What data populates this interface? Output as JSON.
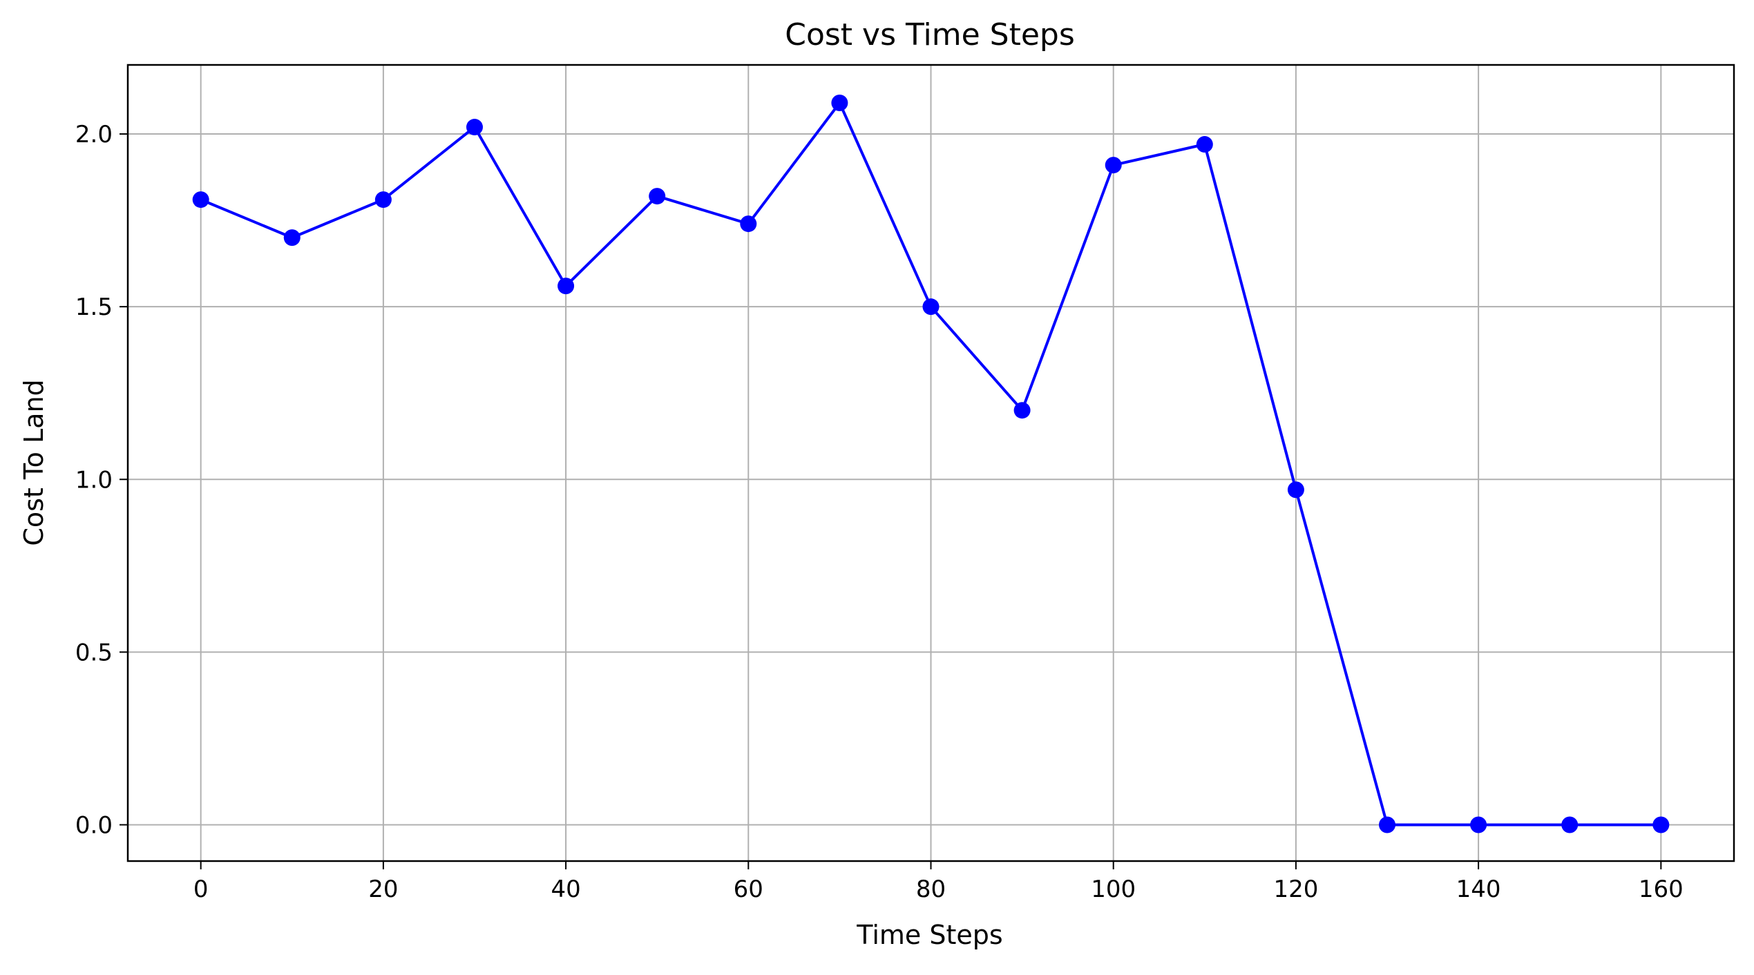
{
  "chart_data": {
    "type": "line",
    "title": "Cost vs Time Steps",
    "xlabel": "Time Steps",
    "ylabel": "Cost To Land",
    "xlim": [
      -8,
      168
    ],
    "ylim": [
      -0.105,
      2.2
    ],
    "x_ticks": [
      0,
      20,
      40,
      60,
      80,
      100,
      120,
      140,
      160
    ],
    "x_tick_labels": [
      "0",
      "20",
      "40",
      "60",
      "80",
      "100",
      "120",
      "140",
      "160"
    ],
    "y_ticks": [
      0.0,
      0.5,
      1.0,
      1.5,
      2.0
    ],
    "y_tick_labels": [
      "0.0",
      "0.5",
      "1.0",
      "1.5",
      "2.0"
    ],
    "grid": true,
    "legend": "none",
    "series": [
      {
        "color": "#0000ff",
        "marker": "circle",
        "x": [
          0,
          10,
          20,
          30,
          40,
          50,
          60,
          70,
          80,
          90,
          100,
          110,
          120,
          130,
          140,
          150,
          160
        ],
        "y": [
          1.81,
          1.7,
          1.81,
          2.02,
          1.56,
          1.82,
          1.74,
          2.09,
          1.5,
          1.2,
          1.91,
          1.97,
          0.97,
          0.0,
          0.0,
          0.0,
          0.0
        ]
      }
    ]
  }
}
